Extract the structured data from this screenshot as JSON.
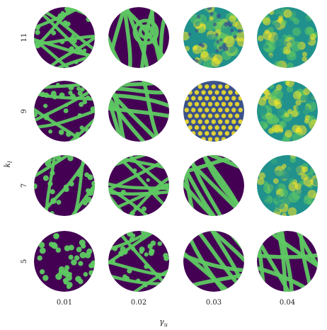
{
  "figure": {
    "row_axis_label": "k",
    "row_axis_subscript": "l",
    "col_axis_label": "γ",
    "col_axis_subscript": "u",
    "rows": [
      "11",
      "9",
      "7",
      "5"
    ],
    "cols": [
      "0.01",
      "0.02",
      "0.03",
      "0.04"
    ],
    "colormap": [
      "#440154",
      "#3b528b",
      "#21918c",
      "#5ec962",
      "#fde725"
    ],
    "panels": [
      {
        "row": "11",
        "col": "0.01",
        "pattern": "labyrinth-spots"
      },
      {
        "row": "11",
        "col": "0.02",
        "pattern": "stripes-target"
      },
      {
        "row": "11",
        "col": "0.03",
        "pattern": "noisy-mixed"
      },
      {
        "row": "11",
        "col": "0.04",
        "pattern": "noisy-diffuse"
      },
      {
        "row": "9",
        "col": "0.01",
        "pattern": "spots-labyrinth"
      },
      {
        "row": "9",
        "col": "0.02",
        "pattern": "stripes"
      },
      {
        "row": "9",
        "col": "0.03",
        "pattern": "hexagonal-spots"
      },
      {
        "row": "9",
        "col": "0.04",
        "pattern": "noisy-diffuse"
      },
      {
        "row": "7",
        "col": "0.01",
        "pattern": "spots-stripes"
      },
      {
        "row": "7",
        "col": "0.02",
        "pattern": "labyrinth"
      },
      {
        "row": "7",
        "col": "0.03",
        "pattern": "stripes"
      },
      {
        "row": "7",
        "col": "0.04",
        "pattern": "noisy-diffuse"
      },
      {
        "row": "5",
        "col": "0.01",
        "pattern": "spots"
      },
      {
        "row": "5",
        "col": "0.02",
        "pattern": "spots-labyrinth"
      },
      {
        "row": "5",
        "col": "0.03",
        "pattern": "stripes"
      },
      {
        "row": "5",
        "col": "0.04",
        "pattern": "stripes"
      }
    ]
  }
}
